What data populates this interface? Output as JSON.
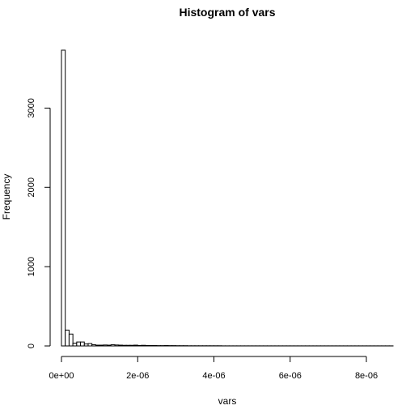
{
  "chart_data": {
    "type": "bar",
    "title": "Histogram of vars",
    "xlabel": "vars",
    "ylabel": "Frequency",
    "xlim": [
      0,
      8.7e-06
    ],
    "ylim": [
      0,
      3750
    ],
    "x_ticks": [
      0,
      2e-06,
      4e-06,
      6e-06,
      8e-06
    ],
    "x_tick_labels": [
      "0e+00",
      "2e-06",
      "4e-06",
      "6e-06",
      "8e-06"
    ],
    "y_ticks": [
      0,
      1000,
      2000,
      3000
    ],
    "y_tick_labels": [
      "0",
      "1000",
      "2000",
      "3000"
    ],
    "bin_width": 1e-07,
    "bin_start": 0,
    "values": [
      3730,
      200,
      150,
      35,
      50,
      50,
      25,
      30,
      15,
      10,
      10,
      12,
      10,
      15,
      12,
      10,
      8,
      8,
      8,
      10,
      6,
      8,
      6,
      5,
      5,
      4,
      4,
      5,
      4,
      4,
      3,
      3,
      3,
      2,
      2,
      2,
      2,
      2,
      2,
      2,
      2,
      2,
      1,
      1,
      1,
      1,
      1,
      1,
      1,
      1,
      1,
      1,
      1,
      1,
      1,
      1,
      1,
      1,
      1,
      1,
      1,
      1,
      1,
      1,
      1,
      1,
      1,
      1,
      1,
      1,
      1,
      1,
      1,
      1,
      1,
      1,
      1,
      1,
      1,
      1,
      1,
      1,
      1,
      1,
      1,
      1,
      1
    ]
  }
}
